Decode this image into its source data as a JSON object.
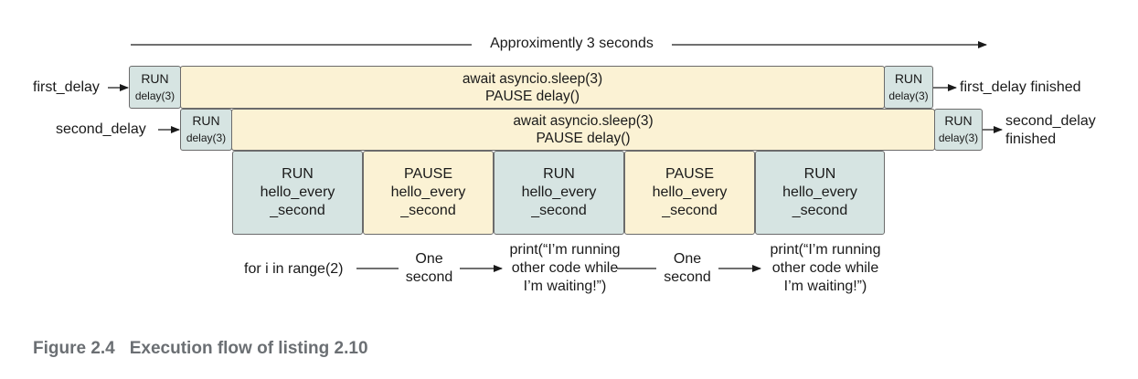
{
  "header": {
    "duration_label": "Approximently 3 seconds"
  },
  "rows": {
    "first": {
      "label": "first_delay",
      "run_start": [
        "RUN",
        "delay(3)"
      ],
      "sleep": [
        "await asyncio.sleep(3)",
        "PAUSE delay()"
      ],
      "run_end": [
        "RUN",
        "delay(3)"
      ],
      "finished": "first_delay finished"
    },
    "second": {
      "label": "second_delay",
      "run_start": [
        "RUN",
        "delay(3)"
      ],
      "sleep": [
        "await asyncio.sleep(3)",
        "PAUSE delay()"
      ],
      "run_end": [
        "RUN",
        "delay(3)"
      ],
      "finished": [
        "second_delay",
        "finished"
      ]
    }
  },
  "hello_every_second": {
    "blocks": [
      {
        "state": "run",
        "lines": [
          "RUN",
          "hello_every",
          "_second"
        ]
      },
      {
        "state": "pause",
        "lines": [
          "PAUSE",
          "hello_every",
          "_second"
        ]
      },
      {
        "state": "run",
        "lines": [
          "RUN",
          "hello_every",
          "_second"
        ]
      },
      {
        "state": "pause",
        "lines": [
          "PAUSE",
          "hello_every",
          "_second"
        ]
      },
      {
        "state": "run",
        "lines": [
          "RUN",
          "hello_every",
          "_second"
        ]
      }
    ]
  },
  "loop_annotation": {
    "for_label": "for i in range(2)",
    "one_second": [
      "One",
      "second"
    ],
    "print_text": [
      "print(“I’m running",
      "other code while",
      "I’m waiting!”)"
    ]
  },
  "colors": {
    "run": "#d6e4e2",
    "pause": "#fbf2d4",
    "border": "#6b6b6b",
    "caption": "#6b6f73"
  },
  "caption": {
    "number": "Figure 2.4",
    "text": "Execution flow of listing 2.10"
  }
}
